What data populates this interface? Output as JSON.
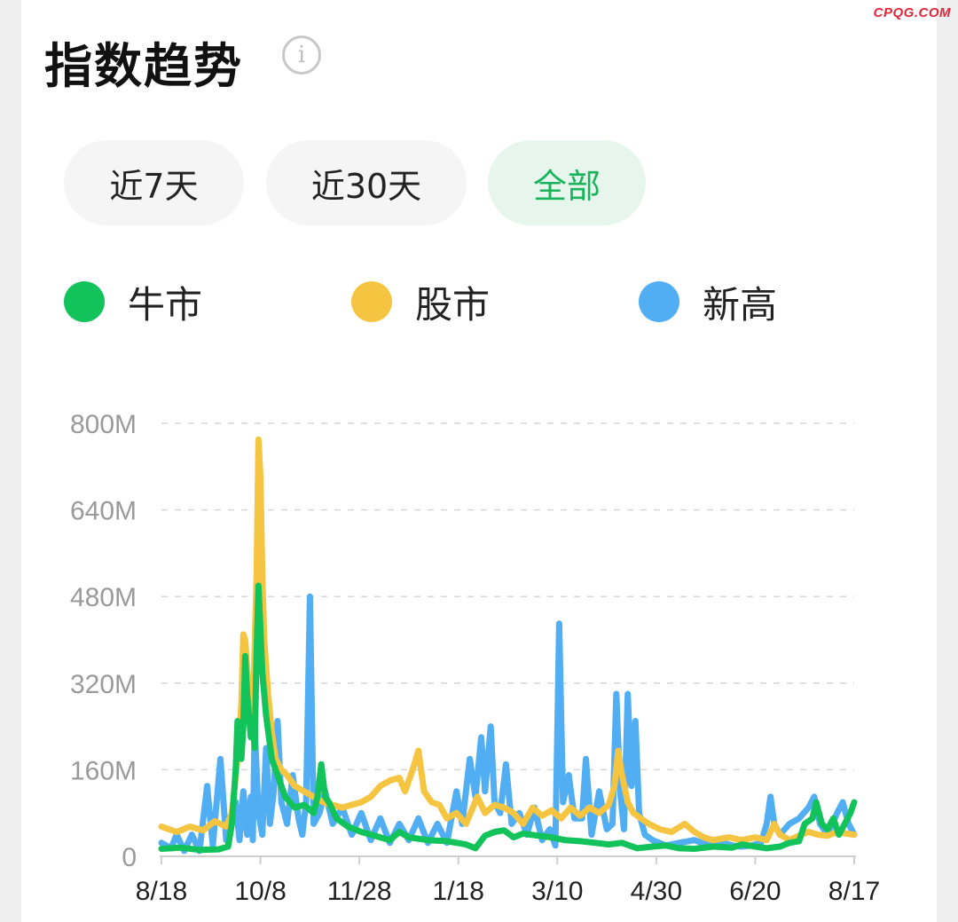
{
  "watermark": "CPQG.COM",
  "header": {
    "title": "指数趋势",
    "info_icon": "info-icon"
  },
  "tabs": [
    {
      "label": "近7天",
      "active": false
    },
    {
      "label": "近30天",
      "active": false
    },
    {
      "label": "全部",
      "active": true
    }
  ],
  "colors": {
    "green": "#12c25a",
    "yellow": "#f5c542",
    "blue": "#52aef2",
    "active_tab_text": "#19b35c"
  },
  "chart_data": {
    "type": "line",
    "ylim": [
      0,
      800
    ],
    "y_ticks": [
      0,
      160,
      320,
      480,
      640,
      800
    ],
    "y_tick_labels": [
      "0",
      "160M",
      "320M",
      "480M",
      "640M",
      "800M"
    ],
    "x_tick_labels": [
      "8/18",
      "10/8",
      "11/28",
      "1/18",
      "3/10",
      "4/30",
      "6/20",
      "8/17"
    ],
    "x_range_days": [
      0,
      364
    ],
    "grid": true,
    "legend_position": "top-left",
    "series": [
      {
        "name": "牛市",
        "color": "#12c25a",
        "points": [
          [
            0,
            14
          ],
          [
            10,
            16
          ],
          [
            20,
            12
          ],
          [
            30,
            13
          ],
          [
            35,
            18
          ],
          [
            37,
            60
          ],
          [
            39,
            160
          ],
          [
            40,
            250
          ],
          [
            42,
            180
          ],
          [
            43,
            240
          ],
          [
            44,
            370
          ],
          [
            45,
            300
          ],
          [
            47,
            220
          ],
          [
            48,
            240
          ],
          [
            49,
            200
          ],
          [
            50,
            380
          ],
          [
            51,
            500
          ],
          [
            52,
            420
          ],
          [
            53,
            340
          ],
          [
            55,
            260
          ],
          [
            58,
            180
          ],
          [
            61,
            150
          ],
          [
            65,
            110
          ],
          [
            70,
            90
          ],
          [
            75,
            95
          ],
          [
            80,
            80
          ],
          [
            82,
            110
          ],
          [
            84,
            170
          ],
          [
            86,
            110
          ],
          [
            88,
            100
          ],
          [
            92,
            70
          ],
          [
            98,
            55
          ],
          [
            105,
            45
          ],
          [
            112,
            38
          ],
          [
            120,
            30
          ],
          [
            125,
            45
          ],
          [
            130,
            35
          ],
          [
            140,
            30
          ],
          [
            150,
            28
          ],
          [
            160,
            22
          ],
          [
            165,
            15
          ],
          [
            170,
            38
          ],
          [
            175,
            45
          ],
          [
            180,
            48
          ],
          [
            185,
            35
          ],
          [
            190,
            42
          ],
          [
            198,
            38
          ],
          [
            205,
            35
          ],
          [
            212,
            30
          ],
          [
            220,
            28
          ],
          [
            228,
            25
          ],
          [
            235,
            22
          ],
          [
            242,
            25
          ],
          [
            250,
            15
          ],
          [
            258,
            18
          ],
          [
            265,
            20
          ],
          [
            272,
            15
          ],
          [
            280,
            14
          ],
          [
            290,
            18
          ],
          [
            300,
            16
          ],
          [
            305,
            22
          ],
          [
            312,
            18
          ],
          [
            318,
            15
          ],
          [
            325,
            18
          ],
          [
            330,
            25
          ],
          [
            335,
            28
          ],
          [
            338,
            60
          ],
          [
            342,
            70
          ],
          [
            344,
            100
          ],
          [
            347,
            60
          ],
          [
            350,
            50
          ],
          [
            353,
            70
          ],
          [
            356,
            40
          ],
          [
            359,
            60
          ],
          [
            362,
            80
          ],
          [
            364,
            100
          ]
        ]
      },
      {
        "name": "股市",
        "color": "#f5c542",
        "points": [
          [
            0,
            55
          ],
          [
            8,
            45
          ],
          [
            15,
            55
          ],
          [
            22,
            48
          ],
          [
            28,
            65
          ],
          [
            34,
            55
          ],
          [
            37,
            80
          ],
          [
            40,
            180
          ],
          [
            42,
            280
          ],
          [
            43,
            410
          ],
          [
            44,
            400
          ],
          [
            46,
            300
          ],
          [
            48,
            260
          ],
          [
            50,
            520
          ],
          [
            51,
            770
          ],
          [
            52,
            700
          ],
          [
            53,
            520
          ],
          [
            54,
            400
          ],
          [
            56,
            300
          ],
          [
            58,
            230
          ],
          [
            60,
            180
          ],
          [
            63,
            160
          ],
          [
            66,
            150
          ],
          [
            70,
            130
          ],
          [
            75,
            120
          ],
          [
            80,
            110
          ],
          [
            85,
            100
          ],
          [
            90,
            95
          ],
          [
            95,
            90
          ],
          [
            100,
            95
          ],
          [
            105,
            100
          ],
          [
            110,
            110
          ],
          [
            115,
            130
          ],
          [
            120,
            140
          ],
          [
            125,
            145
          ],
          [
            128,
            120
          ],
          [
            132,
            160
          ],
          [
            135,
            195
          ],
          [
            138,
            120
          ],
          [
            142,
            100
          ],
          [
            146,
            95
          ],
          [
            150,
            70
          ],
          [
            155,
            80
          ],
          [
            160,
            60
          ],
          [
            166,
            110
          ],
          [
            170,
            80
          ],
          [
            175,
            95
          ],
          [
            180,
            90
          ],
          [
            185,
            80
          ],
          [
            190,
            60
          ],
          [
            195,
            90
          ],
          [
            200,
            75
          ],
          [
            205,
            85
          ],
          [
            210,
            70
          ],
          [
            215,
            90
          ],
          [
            220,
            75
          ],
          [
            225,
            90
          ],
          [
            230,
            80
          ],
          [
            235,
            95
          ],
          [
            238,
            130
          ],
          [
            240,
            195
          ],
          [
            242,
            150
          ],
          [
            245,
            100
          ],
          [
            248,
            80
          ],
          [
            252,
            70
          ],
          [
            256,
            60
          ],
          [
            262,
            50
          ],
          [
            268,
            45
          ],
          [
            275,
            60
          ],
          [
            280,
            45
          ],
          [
            285,
            35
          ],
          [
            290,
            30
          ],
          [
            298,
            35
          ],
          [
            305,
            30
          ],
          [
            312,
            35
          ],
          [
            318,
            30
          ],
          [
            322,
            60
          ],
          [
            325,
            40
          ],
          [
            330,
            30
          ],
          [
            335,
            38
          ],
          [
            340,
            45
          ],
          [
            345,
            40
          ],
          [
            350,
            38
          ],
          [
            355,
            45
          ],
          [
            360,
            42
          ],
          [
            364,
            40
          ]
        ]
      },
      {
        "name": "新高",
        "color": "#52aef2",
        "points": [
          [
            0,
            25
          ],
          [
            5,
            15
          ],
          [
            8,
            40
          ],
          [
            12,
            10
          ],
          [
            16,
            40
          ],
          [
            20,
            10
          ],
          [
            24,
            130
          ],
          [
            27,
            20
          ],
          [
            31,
            180
          ],
          [
            34,
            30
          ],
          [
            37,
            70
          ],
          [
            39,
            100
          ],
          [
            41,
            30
          ],
          [
            43,
            120
          ],
          [
            45,
            40
          ],
          [
            47,
            110
          ],
          [
            48,
            30
          ],
          [
            49,
            240
          ],
          [
            51,
            80
          ],
          [
            53,
            40
          ],
          [
            55,
            200
          ],
          [
            57,
            60
          ],
          [
            59,
            120
          ],
          [
            61,
            250
          ],
          [
            63,
            100
          ],
          [
            66,
            60
          ],
          [
            69,
            150
          ],
          [
            72,
            70
          ],
          [
            74,
            40
          ],
          [
            76,
            100
          ],
          [
            78,
            480
          ],
          [
            80,
            60
          ],
          [
            83,
            80
          ],
          [
            86,
            120
          ],
          [
            90,
            60
          ],
          [
            95,
            90
          ],
          [
            100,
            40
          ],
          [
            105,
            80
          ],
          [
            110,
            30
          ],
          [
            115,
            70
          ],
          [
            120,
            25
          ],
          [
            125,
            60
          ],
          [
            130,
            30
          ],
          [
            135,
            70
          ],
          [
            140,
            25
          ],
          [
            145,
            60
          ],
          [
            150,
            25
          ],
          [
            155,
            120
          ],
          [
            158,
            60
          ],
          [
            162,
            180
          ],
          [
            165,
            110
          ],
          [
            168,
            220
          ],
          [
            170,
            120
          ],
          [
            173,
            240
          ],
          [
            175,
            100
          ],
          [
            178,
            80
          ],
          [
            181,
            170
          ],
          [
            184,
            60
          ],
          [
            188,
            80
          ],
          [
            192,
            40
          ],
          [
            196,
            90
          ],
          [
            200,
            30
          ],
          [
            204,
            50
          ],
          [
            207,
            20
          ],
          [
            209,
            430
          ],
          [
            211,
            100
          ],
          [
            214,
            150
          ],
          [
            217,
            70
          ],
          [
            221,
            70
          ],
          [
            223,
            180
          ],
          [
            226,
            40
          ],
          [
            230,
            120
          ],
          [
            234,
            50
          ],
          [
            237,
            60
          ],
          [
            239,
            300
          ],
          [
            241,
            120
          ],
          [
            243,
            50
          ],
          [
            245,
            300
          ],
          [
            247,
            130
          ],
          [
            249,
            250
          ],
          [
            251,
            80
          ],
          [
            254,
            40
          ],
          [
            258,
            30
          ],
          [
            265,
            20
          ],
          [
            272,
            25
          ],
          [
            280,
            30
          ],
          [
            288,
            20
          ],
          [
            295,
            25
          ],
          [
            300,
            20
          ],
          [
            305,
            18
          ],
          [
            310,
            20
          ],
          [
            315,
            25
          ],
          [
            318,
            60
          ],
          [
            320,
            110
          ],
          [
            322,
            60
          ],
          [
            325,
            40
          ],
          [
            330,
            60
          ],
          [
            335,
            70
          ],
          [
            340,
            90
          ],
          [
            343,
            110
          ],
          [
            346,
            60
          ],
          [
            350,
            40
          ],
          [
            355,
            80
          ],
          [
            358,
            100
          ],
          [
            361,
            60
          ],
          [
            364,
            40
          ]
        ]
      }
    ]
  }
}
